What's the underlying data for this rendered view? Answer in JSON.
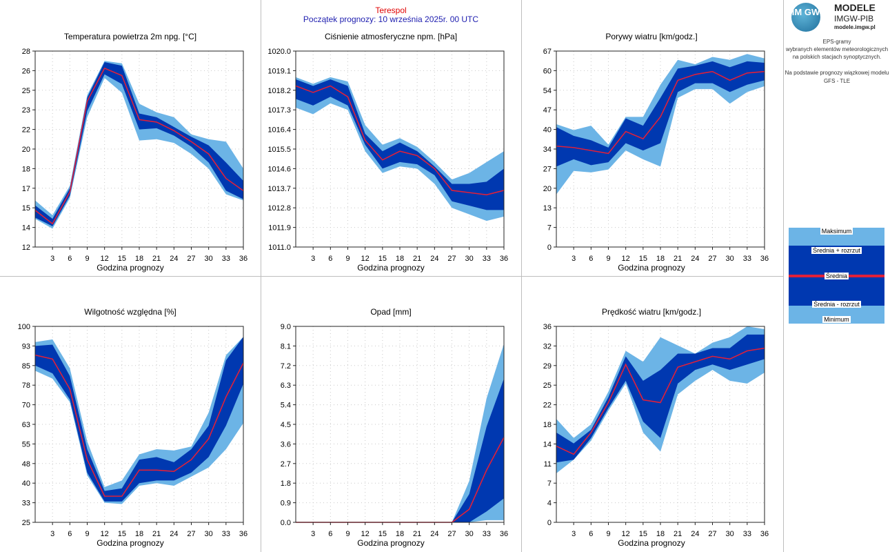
{
  "header": {
    "station": "Terespol",
    "forecast_start": "Początek prognozy: 10 września 2025r. 00 UTC"
  },
  "logo": {
    "circle_text": "IM GW",
    "line1": "MODELE",
    "line2": "IMGW-PIB",
    "line3": "modele.imgw.pl"
  },
  "description": {
    "line1": "EPS-gramy",
    "line2": "wybranych elementów meteorologicznych",
    "line3": "na polskich stacjach synoptycznych.",
    "line4": "Na podstawie prognozy wiązkowej modelu",
    "line5": "GFS - TLE"
  },
  "legend": {
    "max": "Maksimum",
    "mean_plus": "Średnia + rozrzut",
    "mean": "Średnia",
    "mean_minus": "Średnia - rozrzut",
    "min": "Minimum"
  },
  "colors": {
    "light_band": "#6cb4e6",
    "dark_band": "#0038b0",
    "mean_line": "#e0203a",
    "station": "#e00000",
    "start": "#2020b0"
  },
  "chart_data": [
    {
      "type": "area",
      "title": "Temperatura powietrza 2m npg. [°C]",
      "xlabel": "Godzina prognozy",
      "x": [
        0,
        3,
        6,
        9,
        12,
        15,
        18,
        21,
        24,
        27,
        30,
        33,
        36
      ],
      "xticks": [
        "3",
        "6",
        "9",
        "12",
        "15",
        "18",
        "21",
        "24",
        "27",
        "30",
        "33",
        "36"
      ],
      "ylim": [
        12,
        28
      ],
      "yticks": [
        "12",
        "14",
        "15",
        "17",
        "18",
        "20",
        "22",
        "23",
        "25",
        "26",
        "28"
      ],
      "series": [
        {
          "name": "Maksimum",
          "values": [
            15.8,
            14.6,
            17.0,
            24.4,
            27.2,
            27.0,
            23.7,
            23.0,
            22.6,
            21.2,
            20.8,
            20.6,
            18.4
          ]
        },
        {
          "name": "Średnia + rozrzut",
          "values": [
            15.4,
            14.3,
            16.8,
            24.2,
            27.1,
            26.8,
            22.9,
            22.6,
            21.8,
            21.0,
            20.3,
            18.9,
            17.4
          ]
        },
        {
          "name": "Średnia",
          "values": [
            15.0,
            13.9,
            16.5,
            23.9,
            26.6,
            26.0,
            22.4,
            22.2,
            21.5,
            20.6,
            19.6,
            17.6,
            16.6
          ]
        },
        {
          "name": "Średnia - rozrzut",
          "values": [
            14.4,
            13.7,
            16.2,
            23.1,
            26.1,
            25.3,
            21.6,
            21.7,
            21.1,
            20.2,
            18.9,
            16.6,
            15.9
          ]
        },
        {
          "name": "Minimum",
          "values": [
            14.3,
            13.5,
            16.0,
            22.6,
            25.8,
            24.6,
            20.7,
            20.8,
            20.5,
            19.6,
            18.4,
            16.3,
            15.8
          ]
        }
      ]
    },
    {
      "type": "area",
      "title": "Ciśnienie atmosferyczne npm. [hPa]",
      "xlabel": "Godzina prognozy",
      "x": [
        0,
        3,
        6,
        9,
        12,
        15,
        18,
        21,
        24,
        27,
        30,
        33,
        36
      ],
      "xticks": [
        "3",
        "6",
        "9",
        "12",
        "15",
        "18",
        "21",
        "24",
        "27",
        "30",
        "33",
        "36"
      ],
      "ylim": [
        1011.0,
        1020.0
      ],
      "yticks": [
        "1011.0",
        "1011.9",
        "1012.8",
        "1013.7",
        "1014.6",
        "1015.5",
        "1016.4",
        "1017.3",
        "1018.2",
        "1019.1",
        "1020.0"
      ],
      "series": [
        {
          "name": "Maksimum",
          "values": [
            1018.8,
            1018.5,
            1018.8,
            1018.6,
            1016.6,
            1015.7,
            1016.0,
            1015.6,
            1014.9,
            1014.1,
            1014.4,
            1014.9,
            1015.4
          ]
        },
        {
          "name": "Średnia + rozrzut",
          "values": [
            1018.7,
            1018.4,
            1018.7,
            1018.4,
            1016.2,
            1015.4,
            1015.8,
            1015.4,
            1014.7,
            1013.9,
            1013.9,
            1014.0,
            1014.6
          ]
        },
        {
          "name": "Średnia",
          "values": [
            1018.4,
            1018.1,
            1018.4,
            1017.9,
            1015.9,
            1015.0,
            1015.4,
            1015.2,
            1014.6,
            1013.6,
            1013.5,
            1013.4,
            1013.6
          ]
        },
        {
          "name": "Średnia - rozrzut",
          "values": [
            1017.8,
            1017.5,
            1017.9,
            1017.5,
            1015.7,
            1014.6,
            1014.9,
            1014.8,
            1014.3,
            1013.1,
            1012.9,
            1012.7,
            1012.7
          ]
        },
        {
          "name": "Minimum",
          "values": [
            1017.4,
            1017.1,
            1017.6,
            1017.3,
            1015.4,
            1014.4,
            1014.7,
            1014.6,
            1013.9,
            1012.8,
            1012.5,
            1012.2,
            1012.4
          ]
        }
      ]
    },
    {
      "type": "area",
      "title": "Porywy wiatru [km/godz.]",
      "xlabel": "Godzina prognozy",
      "x": [
        0,
        3,
        6,
        9,
        12,
        15,
        18,
        21,
        24,
        27,
        30,
        33,
        36
      ],
      "xticks": [
        "3",
        "6",
        "9",
        "12",
        "15",
        "18",
        "21",
        "24",
        "27",
        "30",
        "33",
        "36"
      ],
      "ylim": [
        0,
        67
      ],
      "yticks": [
        "0",
        "7",
        "13",
        "20",
        "27",
        "34",
        "40",
        "47",
        "54",
        "60",
        "67"
      ],
      "series": [
        {
          "name": "Maksimum",
          "values": [
            42,
            40,
            41.5,
            35,
            44.5,
            44.5,
            55.5,
            64,
            62.5,
            65,
            64,
            66,
            64.5
          ]
        },
        {
          "name": "Średnia + rozrzut",
          "values": [
            41,
            38,
            36.5,
            34,
            44,
            41.5,
            51,
            61,
            62,
            63.5,
            61.5,
            63.5,
            63
          ]
        },
        {
          "name": "Średnia",
          "values": [
            34.5,
            34,
            33,
            32,
            39.5,
            37,
            44.5,
            57,
            59,
            60,
            57,
            59.5,
            60
          ]
        },
        {
          "name": "Średnia - rozrzut",
          "values": [
            27.5,
            30,
            28,
            29,
            35.5,
            33,
            35.5,
            53,
            56,
            56,
            53,
            55.5,
            57
          ]
        },
        {
          "name": "Minimum",
          "values": [
            18,
            26,
            25.5,
            26.5,
            33,
            30,
            27.5,
            51,
            54,
            54,
            49,
            53,
            55
          ]
        }
      ]
    },
    {
      "type": "area",
      "title": "Wilgotność względna [%]",
      "xlabel": "Godzina prognozy",
      "x": [
        0,
        3,
        6,
        9,
        12,
        15,
        18,
        21,
        24,
        27,
        30,
        33,
        36
      ],
      "xticks": [
        "3",
        "6",
        "9",
        "12",
        "15",
        "18",
        "21",
        "24",
        "27",
        "30",
        "33",
        "36"
      ],
      "ylim": [
        25,
        100
      ],
      "yticks": [
        "25",
        "33",
        "40",
        "48",
        "55",
        "63",
        "70",
        "78",
        "85",
        "93",
        "100"
      ],
      "series": [
        {
          "name": "Maksimum",
          "values": [
            94,
            95,
            84,
            56,
            38.5,
            41,
            51,
            53,
            52.5,
            54,
            67,
            89,
            96
          ]
        },
        {
          "name": "Średnia + rozrzut",
          "values": [
            92.5,
            93,
            81,
            53,
            37,
            38,
            49,
            50,
            48,
            53,
            62,
            87,
            96
          ]
        },
        {
          "name": "Średnia",
          "values": [
            89,
            87.5,
            76,
            49,
            35,
            35,
            45,
            45,
            44.5,
            49,
            57,
            73,
            86
          ]
        },
        {
          "name": "Średnia - rozrzut",
          "values": [
            85,
            82,
            72,
            44,
            33,
            33,
            40,
            41,
            41,
            44,
            50,
            62,
            78
          ]
        },
        {
          "name": "Minimum",
          "values": [
            83,
            80,
            71,
            43,
            32.5,
            32,
            39,
            40,
            39,
            42.5,
            46,
            53,
            63
          ]
        }
      ]
    },
    {
      "type": "area",
      "title": "Opad [mm]",
      "xlabel": "Godzina prognozy",
      "x": [
        0,
        3,
        6,
        9,
        12,
        15,
        18,
        21,
        24,
        27,
        30,
        33,
        36
      ],
      "xticks": [
        "3",
        "6",
        "9",
        "12",
        "15",
        "18",
        "21",
        "24",
        "27",
        "30",
        "33",
        "36"
      ],
      "ylim": [
        0,
        9
      ],
      "yticks": [
        "0.0",
        "0.9",
        "1.8",
        "2.7",
        "3.6",
        "4.5",
        "5.4",
        "6.3",
        "7.2",
        "8.1",
        "9.0"
      ],
      "series": [
        {
          "name": "Maksimum",
          "values": [
            0,
            0,
            0,
            0,
            0,
            0,
            0,
            0,
            0,
            0,
            1.9,
            5.7,
            8.2
          ]
        },
        {
          "name": "Średnia + rozrzut",
          "values": [
            0,
            0,
            0,
            0,
            0,
            0,
            0,
            0,
            0,
            0,
            1.3,
            4.4,
            6.6
          ]
        },
        {
          "name": "Średnia",
          "values": [
            0,
            0,
            0,
            0,
            0,
            0,
            0,
            0,
            0,
            0,
            0.6,
            2.4,
            3.9
          ]
        },
        {
          "name": "Średnia - rozrzut",
          "values": [
            0,
            0,
            0,
            0,
            0,
            0,
            0,
            0,
            0,
            0,
            0.0,
            0.5,
            1.1
          ]
        },
        {
          "name": "Minimum",
          "values": [
            0,
            0,
            0,
            0,
            0,
            0,
            0,
            0,
            0,
            0,
            0.0,
            0.1,
            0.1
          ]
        }
      ]
    },
    {
      "type": "area",
      "title": "Prędkość wiatru [km/godz.]",
      "xlabel": "Godzina prognozy",
      "x": [
        0,
        3,
        6,
        9,
        12,
        15,
        18,
        21,
        24,
        27,
        30,
        33,
        36
      ],
      "xticks": [
        "3",
        "6",
        "9",
        "12",
        "15",
        "18",
        "21",
        "24",
        "27",
        "30",
        "33",
        "36"
      ],
      "ylim": [
        0,
        36
      ],
      "yticks": [
        "0",
        "4",
        "7",
        "11",
        "14",
        "18",
        "22",
        "25",
        "29",
        "32",
        "36"
      ],
      "series": [
        {
          "name": "Maksimum",
          "values": [
            19,
            15.5,
            18,
            24,
            31.5,
            29.5,
            34,
            32.5,
            31,
            33,
            34,
            36,
            35.5
          ]
        },
        {
          "name": "Średnia + rozrzut",
          "values": [
            16.5,
            14.5,
            17,
            23,
            30.5,
            26,
            28,
            31,
            31,
            32,
            32,
            34.5,
            34.5
          ]
        },
        {
          "name": "Średnia",
          "values": [
            14,
            12.5,
            16.5,
            22,
            29,
            22.5,
            22,
            28.5,
            29.5,
            30.5,
            30,
            31.5,
            32
          ]
        },
        {
          "name": "Średnia - rozrzut",
          "values": [
            11,
            11.5,
            15.5,
            21,
            26,
            18.5,
            15.5,
            25.5,
            28,
            29,
            28,
            29,
            30
          ]
        },
        {
          "name": "Minimum",
          "values": [
            9,
            11.5,
            15,
            20.5,
            25.5,
            16.5,
            13,
            23.5,
            26,
            28,
            26,
            25.5,
            27.5
          ]
        }
      ]
    }
  ]
}
